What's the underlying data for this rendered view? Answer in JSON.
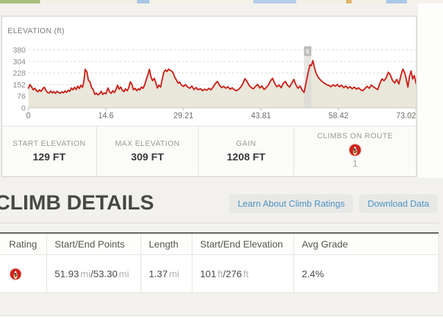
{
  "chart_panel": {
    "title": "ELEVATION (ft)"
  },
  "chart_data": {
    "type": "area",
    "title": "ELEVATION (ft)",
    "xlim": [
      0,
      73.02
    ],
    "ylim": [
      0,
      380
    ],
    "x_ticks": [
      {
        "label": "0",
        "mi": 0
      },
      {
        "label": "14.6",
        "mi": 14.6
      },
      {
        "label": "29.21",
        "mi": 29.21
      },
      {
        "label": "43.81",
        "mi": 43.81
      },
      {
        "label": "58.42",
        "mi": 58.42
      },
      {
        "label": "73.02",
        "mi": 73.02
      }
    ],
    "y_ticks": [
      380,
      304,
      228,
      152,
      76,
      0
    ],
    "grid": "dashed",
    "line_color": "#c9231b",
    "fill_color": "#eae7db",
    "grid_color": "#d9d9d6",
    "climb_marker": {
      "label": "5",
      "start_mi": 51.93,
      "end_mi": 53.3
    },
    "series": [
      {
        "name": "elevation_ft",
        "points": [
          [
            0,
            129
          ],
          [
            0.3,
            152
          ],
          [
            0.6,
            138
          ],
          [
            0.9,
            118
          ],
          [
            1.2,
            128
          ],
          [
            1.5,
            112
          ],
          [
            1.8,
            105
          ],
          [
            2.1,
            118
          ],
          [
            2.4,
            108
          ],
          [
            2.7,
            125
          ],
          [
            3,
            135
          ],
          [
            3.3,
            115
          ],
          [
            3.6,
            100
          ],
          [
            3.9,
            97
          ],
          [
            4.2,
            110
          ],
          [
            4.5,
            98
          ],
          [
            4.8,
            106
          ],
          [
            5.1,
            95
          ],
          [
            5.4,
            108
          ],
          [
            5.7,
            100
          ],
          [
            6,
            96
          ],
          [
            6.3,
            105
          ],
          [
            6.6,
            98
          ],
          [
            6.9,
            110
          ],
          [
            7.2,
            102
          ],
          [
            7.5,
            115
          ],
          [
            7.8,
            108
          ],
          [
            8.1,
            130
          ],
          [
            8.4,
            118
          ],
          [
            8.7,
            135
          ],
          [
            9,
            120
          ],
          [
            9.3,
            142
          ],
          [
            9.6,
            126
          ],
          [
            9.9,
            148
          ],
          [
            10.2,
            135
          ],
          [
            10.45,
            170
          ],
          [
            10.7,
            252
          ],
          [
            11,
            236
          ],
          [
            11.3,
            182
          ],
          [
            11.6,
            170
          ],
          [
            11.9,
            132
          ],
          [
            12.2,
            120
          ],
          [
            12.5,
            88
          ],
          [
            12.8,
            96
          ],
          [
            13.1,
            85
          ],
          [
            13.4,
            92
          ],
          [
            13.7,
            108
          ],
          [
            14,
            88
          ],
          [
            14.3,
            98
          ],
          [
            14.6,
            92
          ],
          [
            15,
            130
          ],
          [
            15.3,
            105
          ],
          [
            15.6,
            95
          ],
          [
            15.9,
            112
          ],
          [
            16.2,
            100
          ],
          [
            16.5,
            120
          ],
          [
            16.8,
            148
          ],
          [
            17.1,
            122
          ],
          [
            17.4,
            136
          ],
          [
            17.7,
            115
          ],
          [
            18,
            106
          ],
          [
            18.3,
            125
          ],
          [
            18.6,
            112
          ],
          [
            18.9,
            130
          ],
          [
            19.2,
            170
          ],
          [
            19.5,
            154
          ],
          [
            19.8,
            118
          ],
          [
            20.1,
            128
          ],
          [
            20.4,
            112
          ],
          [
            20.7,
            125
          ],
          [
            21,
            118
          ],
          [
            21.3,
            136
          ],
          [
            21.6,
            128
          ],
          [
            21.9,
            150
          ],
          [
            22.2,
            186
          ],
          [
            22.5,
            215
          ],
          [
            22.8,
            252
          ],
          [
            23.1,
            200
          ],
          [
            23.4,
            178
          ],
          [
            23.7,
            193
          ],
          [
            24,
            164
          ],
          [
            24.3,
            130
          ],
          [
            24.6,
            149
          ],
          [
            24.9,
            136
          ],
          [
            25.2,
            186
          ],
          [
            25.5,
            231
          ],
          [
            25.8,
            248
          ],
          [
            26.1,
            238
          ],
          [
            26.4,
            253
          ],
          [
            26.7,
            246
          ],
          [
            27,
            240
          ],
          [
            27.3,
            226
          ],
          [
            27.6,
            198
          ],
          [
            27.9,
            181
          ],
          [
            28.2,
            161
          ],
          [
            28.5,
            168
          ],
          [
            28.8,
            150
          ],
          [
            29.2,
            140
          ],
          [
            29.6,
            152
          ],
          [
            30,
            136
          ],
          [
            30.4,
            128
          ],
          [
            30.8,
            143
          ],
          [
            31.2,
            120
          ],
          [
            31.6,
            133
          ],
          [
            32,
            118
          ],
          [
            32.4,
            126
          ],
          [
            32.8,
            112
          ],
          [
            33.2,
            122
          ],
          [
            33.6,
            115
          ],
          [
            34,
            128
          ],
          [
            34.4,
            118
          ],
          [
            34.8,
            136
          ],
          [
            35.2,
            158
          ],
          [
            35.6,
            173
          ],
          [
            36,
            148
          ],
          [
            36.4,
            132
          ],
          [
            36.8,
            141
          ],
          [
            37.2,
            128
          ],
          [
            37.6,
            138
          ],
          [
            38,
            122
          ],
          [
            38.4,
            131
          ],
          [
            38.8,
            118
          ],
          [
            39.2,
            112
          ],
          [
            39.6,
            121
          ],
          [
            40,
            136
          ],
          [
            40.4,
            158
          ],
          [
            40.8,
            191
          ],
          [
            41.2,
            172
          ],
          [
            41.6,
            146
          ],
          [
            42,
            132
          ],
          [
            42.4,
            125
          ],
          [
            42.8,
            141
          ],
          [
            43.2,
            153
          ],
          [
            43.6,
            130
          ],
          [
            44,
            143
          ],
          [
            44.4,
            120
          ],
          [
            44.8,
            133
          ],
          [
            45.2,
            149
          ],
          [
            45.6,
            176
          ],
          [
            46,
            193
          ],
          [
            46.4,
            161
          ],
          [
            46.8,
            138
          ],
          [
            47.2,
            149
          ],
          [
            47.6,
            132
          ],
          [
            48,
            159
          ],
          [
            48.4,
            173
          ],
          [
            48.8,
            148
          ],
          [
            49.2,
            136
          ],
          [
            49.6,
            161
          ],
          [
            50,
            186
          ],
          [
            50.4,
            151
          ],
          [
            50.8,
            128
          ],
          [
            51.2,
            143
          ],
          [
            51.55,
            117
          ],
          [
            51.93,
            101
          ],
          [
            52.3,
            162
          ],
          [
            52.7,
            232
          ],
          [
            53.05,
            281
          ],
          [
            53.3,
            276
          ],
          [
            53.6,
            309
          ],
          [
            53.9,
            262
          ],
          [
            54.2,
            226
          ],
          [
            54.6,
            200
          ],
          [
            55,
            183
          ],
          [
            55.4,
            170
          ],
          [
            55.8,
            160
          ],
          [
            56.2,
            152
          ],
          [
            56.6,
            147
          ],
          [
            57,
            138
          ],
          [
            57.4,
            151
          ],
          [
            57.8,
            142
          ],
          [
            58.2,
            153
          ],
          [
            58.6,
            138
          ],
          [
            59,
            148
          ],
          [
            59.4,
            132
          ],
          [
            59.8,
            143
          ],
          [
            60.2,
            128
          ],
          [
            60.6,
            139
          ],
          [
            61,
            125
          ],
          [
            61.4,
            136
          ],
          [
            61.8,
            122
          ],
          [
            62.2,
            131
          ],
          [
            62.6,
            118
          ],
          [
            63,
            112
          ],
          [
            63.4,
            126
          ],
          [
            63.8,
            141
          ],
          [
            64.2,
            128
          ],
          [
            64.6,
            149
          ],
          [
            65,
            138
          ],
          [
            65.4,
            128
          ],
          [
            65.8,
            119
          ],
          [
            66.2,
            159
          ],
          [
            66.6,
            189
          ],
          [
            67,
            178
          ],
          [
            67.4,
            196
          ],
          [
            67.8,
            233
          ],
          [
            68.2,
            215
          ],
          [
            68.6,
            179
          ],
          [
            69,
            163
          ],
          [
            69.4,
            186
          ],
          [
            69.8,
            156
          ],
          [
            70.2,
            216
          ],
          [
            70.55,
            253
          ],
          [
            70.9,
            229
          ],
          [
            71.2,
            186
          ],
          [
            71.5,
            136
          ],
          [
            71.8,
            206
          ],
          [
            72.1,
            241
          ],
          [
            72.4,
            189
          ],
          [
            72.7,
            212
          ],
          [
            73.02,
            160
          ]
        ]
      }
    ]
  },
  "stats": {
    "items": [
      {
        "label": "START ELEVATION",
        "value": "129 FT"
      },
      {
        "label": "MAX ELEVATION",
        "value": "309 FT"
      },
      {
        "label": "GAIN",
        "value": "1208 FT"
      }
    ],
    "climbs": {
      "label": "CLIMBS ON ROUTE",
      "badge": "5",
      "count": "1"
    }
  },
  "climb_details": {
    "heading": "CLIMB DETAILS",
    "buttons": [
      {
        "label": "Learn About Climb Ratings"
      },
      {
        "label": "Download Data"
      }
    ]
  },
  "table": {
    "columns": [
      "Rating",
      "Start/End Points",
      "Length",
      "Start/End Elevation",
      "Avg Grade"
    ],
    "rows": [
      {
        "rating": "5",
        "points_start": "51.93",
        "points_start_unit": "mi",
        "sep": "/",
        "points_end": "53.30",
        "points_end_unit": "mi",
        "length": "1.37",
        "length_unit": "mi",
        "elev_start": "101",
        "elev_start_unit": "ft",
        "elev_end": "276",
        "elev_end_unit": "ft",
        "avg_grade": "2.4%"
      }
    ]
  },
  "colors": {
    "accent_red": "#c9231b",
    "link_blue": "#4b93c3",
    "fill_beige": "#eae7db"
  }
}
